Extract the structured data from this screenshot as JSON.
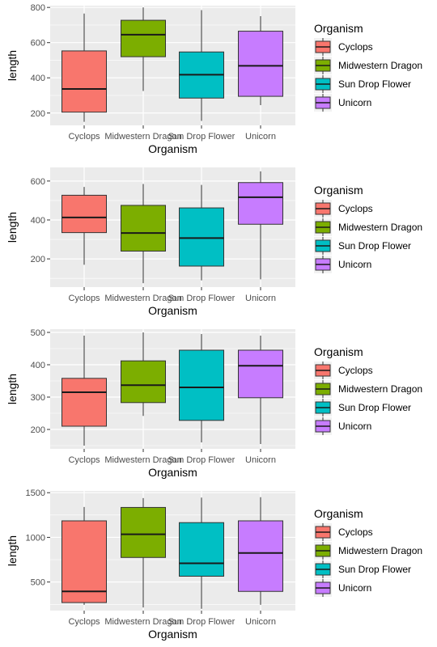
{
  "colors": {
    "panel_bg": "#EBEBEB",
    "grid_major": "#FFFFFF",
    "tick_text": "#4D4D4D",
    "Cyclops": "#F8766D",
    "Midwestern Dragon": "#7CAE00",
    "Sun Drop Flower": "#00BFC4",
    "Unicorn": "#C77CFF"
  },
  "chart_data": [
    {
      "type": "boxplot",
      "xlabel": "Organism",
      "ylabel": "length",
      "categories": [
        "Cyclops",
        "Midwestern Dragon",
        "Sun Drop Flower",
        "Unicorn"
      ],
      "ylim": [
        130,
        810
      ],
      "yticks": [
        200,
        400,
        600,
        800
      ],
      "legend": {
        "title": "Organism",
        "position": "right"
      },
      "grid": true,
      "boxes": [
        {
          "category": "Cyclops",
          "min": 150,
          "q1": 205,
          "median": 337,
          "q3": 553,
          "max": 765
        },
        {
          "category": "Midwestern Dragon",
          "min": 325,
          "q1": 520,
          "median": 645,
          "q3": 727,
          "max": 800
        },
        {
          "category": "Sun Drop Flower",
          "min": 155,
          "q1": 285,
          "median": 418,
          "q3": 547,
          "max": 785
        },
        {
          "category": "Unicorn",
          "min": 245,
          "q1": 295,
          "median": 468,
          "q3": 665,
          "max": 750
        }
      ]
    },
    {
      "type": "boxplot",
      "xlabel": "Organism",
      "ylabel": "length",
      "categories": [
        "Cyclops",
        "Midwestern Dragon",
        "Sun Drop Flower",
        "Unicorn"
      ],
      "ylim": [
        55,
        670
      ],
      "yticks": [
        200,
        400,
        600
      ],
      "legend": {
        "title": "Organism",
        "position": "right"
      },
      "grid": true,
      "boxes": [
        {
          "category": "Cyclops",
          "min": 170,
          "q1": 335,
          "median": 413,
          "q3": 527,
          "max": 570
        },
        {
          "category": "Midwestern Dragon",
          "min": 75,
          "q1": 240,
          "median": 333,
          "q3": 475,
          "max": 585
        },
        {
          "category": "Sun Drop Flower",
          "min": 90,
          "q1": 163,
          "median": 307,
          "q3": 462,
          "max": 580
        },
        {
          "category": "Unicorn",
          "min": 95,
          "q1": 378,
          "median": 517,
          "q3": 592,
          "max": 650
        }
      ]
    },
    {
      "type": "boxplot",
      "xlabel": "Organism",
      "ylabel": "length",
      "categories": [
        "Cyclops",
        "Midwestern Dragon",
        "Sun Drop Flower",
        "Unicorn"
      ],
      "ylim": [
        140,
        510
      ],
      "yticks": [
        200,
        300,
        400,
        500
      ],
      "legend": {
        "title": "Organism",
        "position": "right"
      },
      "grid": true,
      "boxes": [
        {
          "category": "Cyclops",
          "min": 150,
          "q1": 210,
          "median": 315,
          "q3": 358,
          "max": 490
        },
        {
          "category": "Midwestern Dragon",
          "min": 242,
          "q1": 283,
          "median": 337,
          "q3": 412,
          "max": 500
        },
        {
          "category": "Sun Drop Flower",
          "min": 160,
          "q1": 228,
          "median": 330,
          "q3": 445,
          "max": 495
        },
        {
          "category": "Unicorn",
          "min": 155,
          "q1": 298,
          "median": 397,
          "q3": 445,
          "max": 490
        }
      ]
    },
    {
      "type": "boxplot",
      "xlabel": "Organism",
      "ylabel": "length",
      "categories": [
        "Cyclops",
        "Midwestern Dragon",
        "Sun Drop Flower",
        "Unicorn"
      ],
      "ylim": [
        180,
        1520
      ],
      "yticks": [
        500,
        1000,
        1500
      ],
      "legend": {
        "title": "Organism",
        "position": "right"
      },
      "grid": true,
      "boxes": [
        {
          "category": "Cyclops",
          "min": 245,
          "q1": 270,
          "median": 395,
          "q3": 1185,
          "max": 1340
        },
        {
          "category": "Midwestern Dragon",
          "min": 215,
          "q1": 775,
          "median": 1035,
          "q3": 1335,
          "max": 1440
        },
        {
          "category": "Sun Drop Flower",
          "min": 200,
          "q1": 565,
          "median": 710,
          "q3": 1165,
          "max": 1445
        },
        {
          "category": "Unicorn",
          "min": 245,
          "q1": 395,
          "median": 825,
          "q3": 1185,
          "max": 1450
        }
      ]
    }
  ]
}
